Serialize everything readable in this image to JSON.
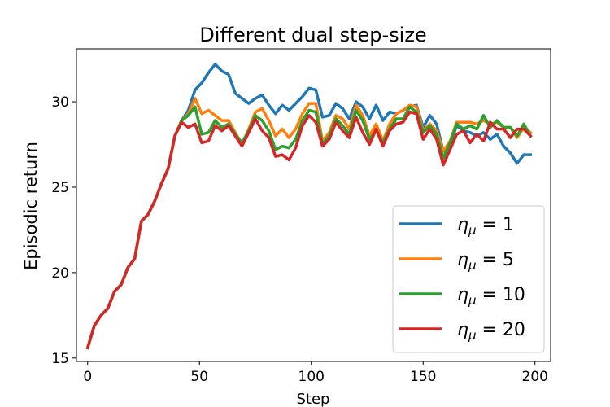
{
  "chart_data": {
    "type": "line",
    "title": "Different dual step-size",
    "xlabel": "Step",
    "ylabel": "Episodic return",
    "xlim": [
      -5,
      207
    ],
    "ylim": [
      14.8,
      33.1
    ],
    "xticks": [
      0,
      50,
      100,
      150,
      200
    ],
    "yticks": [
      15,
      20,
      25,
      30
    ],
    "legend": "lower-right",
    "grid": false,
    "series": [
      {
        "name": "η_μ = 1",
        "legend_symbol": "η",
        "legend_sub": "μ",
        "legend_rest": " = 1",
        "color": "#1f77b4",
        "values": [
          15.6,
          16.9,
          17.5,
          17.9,
          18.9,
          19.3,
          20.3,
          20.8,
          23.0,
          23.4,
          24.2,
          25.2,
          26.1,
          28.0,
          28.9,
          29.5,
          30.7,
          31.1,
          31.7,
          32.2,
          31.8,
          31.6,
          30.5,
          30.2,
          29.9,
          30.2,
          30.4,
          29.8,
          29.3,
          29.8,
          29.5,
          29.9,
          30.3,
          30.8,
          30.7,
          29.1,
          29.2,
          29.9,
          29.6,
          29.0,
          30.0,
          29.7,
          29.0,
          29.8,
          28.9,
          29.4,
          29.3,
          29.5,
          29.7,
          29.8,
          28.5,
          29.2,
          28.7,
          27.1,
          27.5,
          28.6,
          28.3,
          28.2,
          28.0,
          28.2,
          27.8,
          28.1,
          27.4,
          27.0,
          26.4,
          26.9,
          26.9
        ]
      },
      {
        "name": "η_μ = 5",
        "legend_symbol": "η",
        "legend_sub": "μ",
        "legend_rest": " = 5",
        "color": "#ff7f0e",
        "values": [
          15.6,
          16.9,
          17.5,
          17.9,
          18.9,
          19.3,
          20.3,
          20.8,
          23.0,
          23.4,
          24.2,
          25.2,
          26.1,
          28.0,
          28.9,
          29.3,
          30.2,
          29.3,
          29.5,
          29.2,
          28.9,
          28.9,
          28.2,
          27.5,
          28.4,
          29.4,
          29.6,
          28.9,
          28.0,
          28.4,
          27.9,
          28.4,
          29.3,
          29.9,
          29.9,
          27.7,
          28.2,
          29.2,
          29.0,
          28.4,
          29.8,
          29.2,
          28.0,
          28.7,
          27.7,
          28.7,
          29.3,
          29.5,
          29.8,
          29.7,
          28.3,
          28.7,
          28.3,
          27.1,
          27.7,
          28.8,
          28.8,
          28.8,
          28.7,
          28.9,
          28.7,
          28.8,
          28.5,
          28.5,
          27.9,
          28.5,
          28.2
        ]
      },
      {
        "name": "η_μ = 10",
        "legend_symbol": "η",
        "legend_sub": "μ",
        "legend_rest": " = 10",
        "color": "#2ca02c",
        "values": [
          15.6,
          16.9,
          17.5,
          17.9,
          18.9,
          19.3,
          20.3,
          20.8,
          23.0,
          23.4,
          24.2,
          25.2,
          26.1,
          28.0,
          28.9,
          29.2,
          29.7,
          28.1,
          28.2,
          28.9,
          28.5,
          28.7,
          28.1,
          27.6,
          28.3,
          29.2,
          28.9,
          28.3,
          27.2,
          27.4,
          27.3,
          27.8,
          28.9,
          29.5,
          29.4,
          27.5,
          28.0,
          29.0,
          28.6,
          28.1,
          29.5,
          28.9,
          27.8,
          28.3,
          27.6,
          28.4,
          29.0,
          29.0,
          29.7,
          29.4,
          28.2,
          28.6,
          28.1,
          26.7,
          27.6,
          28.7,
          28.4,
          28.6,
          28.4,
          29.2,
          28.5,
          28.9,
          28.5,
          28.5,
          28.0,
          28.7,
          28.0
        ]
      },
      {
        "name": "η_μ = 20",
        "legend_symbol": "η",
        "legend_sub": "μ",
        "legend_rest": " = 20",
        "color": "#d62728",
        "values": [
          15.6,
          16.9,
          17.5,
          17.9,
          18.9,
          19.3,
          20.3,
          20.8,
          23.0,
          23.4,
          24.2,
          25.2,
          26.1,
          28.0,
          28.8,
          28.5,
          28.7,
          27.6,
          27.7,
          28.6,
          28.3,
          28.6,
          28.0,
          27.4,
          28.2,
          29.0,
          28.3,
          27.9,
          26.8,
          26.9,
          26.6,
          27.3,
          28.6,
          29.2,
          28.8,
          27.4,
          27.8,
          28.8,
          28.3,
          27.9,
          29.1,
          28.2,
          27.5,
          28.4,
          27.4,
          28.3,
          28.7,
          28.8,
          29.4,
          29.3,
          27.8,
          28.4,
          27.8,
          26.3,
          27.2,
          28.1,
          28.3,
          27.6,
          28.1,
          27.7,
          28.8,
          28.4,
          28.4,
          27.9,
          28.4,
          28.4,
          28.0
        ]
      }
    ],
    "x_start": 0,
    "x_step": 3
  }
}
